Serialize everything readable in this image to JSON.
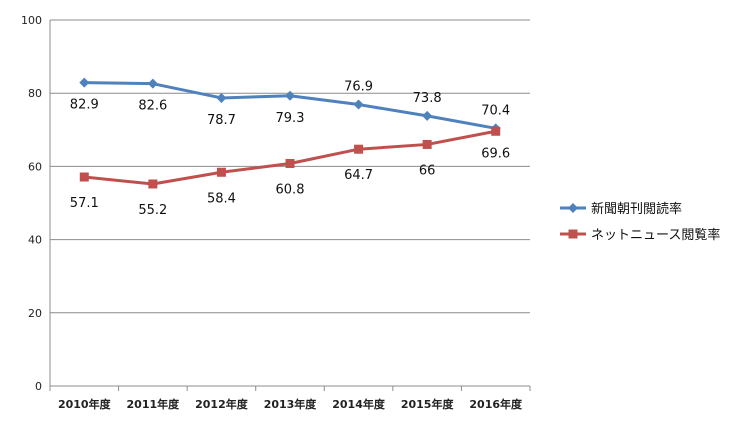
{
  "chart_data": {
    "type": "line",
    "categories": [
      "2010年度",
      "2011年度",
      "2012年度",
      "2013年度",
      "2014年度",
      "2015年度",
      "2016年度"
    ],
    "ylim": [
      0,
      100
    ],
    "yticks": [
      0,
      20,
      40,
      60,
      80,
      100
    ],
    "grid": "horizontal",
    "legend_position": "right",
    "series": [
      {
        "name": "新聞朝刊閲読率",
        "values": [
          82.9,
          82.6,
          78.7,
          79.3,
          76.9,
          73.8,
          70.4
        ],
        "labels": [
          "82.9",
          "82.6",
          "78.7",
          "79.3",
          "76.9",
          "73.8",
          "70.4"
        ],
        "color": "#4F81BD",
        "marker": "diamond"
      },
      {
        "name": "ネットニュース閲覧率",
        "values": [
          57.1,
          55.2,
          58.4,
          60.8,
          64.7,
          66,
          69.6
        ],
        "labels": [
          "57.1",
          "55.2",
          "58.4",
          "60.8",
          "64.7",
          "66",
          "69.6"
        ],
        "color": "#C0504D",
        "marker": "square"
      }
    ]
  }
}
